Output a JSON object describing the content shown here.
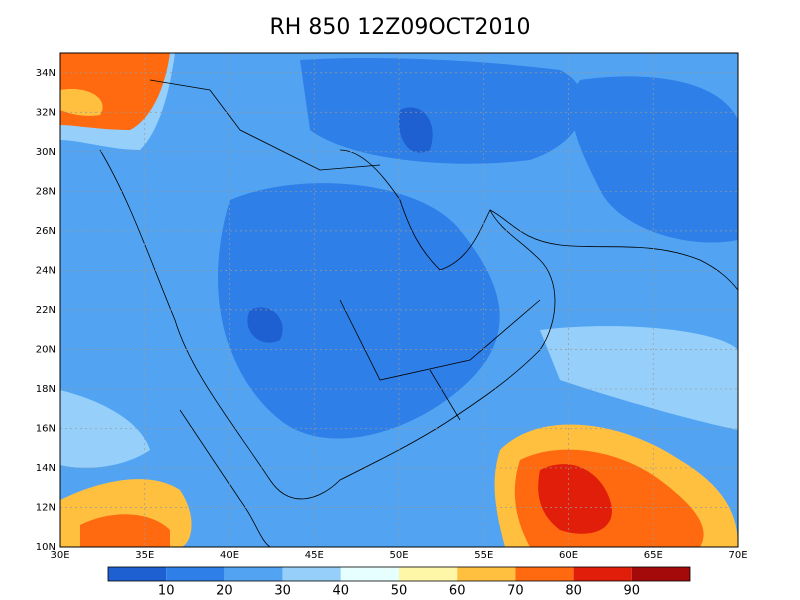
{
  "title": "RH 850 12Z09OCT2010",
  "map": {
    "lon_labels": [
      "30E",
      "35E",
      "40E",
      "45E",
      "50E",
      "55E",
      "60E",
      "65E",
      "70E"
    ],
    "lat_labels": [
      "10N",
      "12N",
      "14N",
      "16N",
      "18N",
      "20N",
      "22N",
      "24N",
      "26N",
      "28N",
      "30N",
      "32N",
      "34N"
    ]
  },
  "colorbar": {
    "colors": [
      "#1e5fd2",
      "#2e7fe8",
      "#52a4f3",
      "#96d0fa",
      "#e6ffff",
      "#fff7a8",
      "#ffc040",
      "#ff6a10",
      "#e01e0a",
      "#a50a0a"
    ],
    "labels": [
      10,
      20,
      30,
      40,
      50,
      60,
      70,
      80,
      90
    ]
  }
}
